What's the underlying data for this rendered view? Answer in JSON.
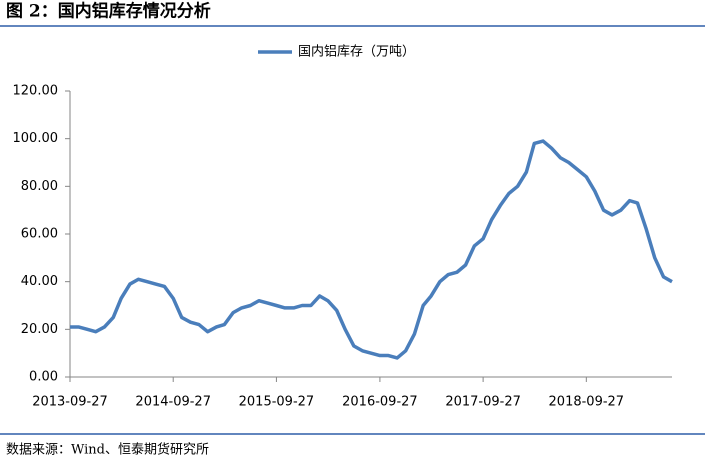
{
  "caption": "图 2：国内铝库存情况分析",
  "source": "数据来源：Wind、恒泰期货研究所",
  "chart_data": {
    "type": "line",
    "x": [
      "2013-09-27",
      "2013-10-27",
      "2013-11-27",
      "2013-12-27",
      "2014-01-27",
      "2014-02-27",
      "2014-03-27",
      "2014-04-27",
      "2014-05-27",
      "2014-06-27",
      "2014-07-27",
      "2014-08-27",
      "2014-09-27",
      "2014-10-27",
      "2014-11-27",
      "2014-12-27",
      "2015-01-27",
      "2015-02-27",
      "2015-03-27",
      "2015-04-27",
      "2015-05-27",
      "2015-06-27",
      "2015-07-27",
      "2015-08-27",
      "2015-09-27",
      "2015-10-27",
      "2015-11-27",
      "2015-12-27",
      "2016-01-27",
      "2016-02-27",
      "2016-03-27",
      "2016-04-27",
      "2016-05-27",
      "2016-06-27",
      "2016-07-27",
      "2016-08-27",
      "2016-09-27",
      "2016-10-27",
      "2016-11-27",
      "2016-12-27",
      "2017-01-27",
      "2017-02-27",
      "2017-03-27",
      "2017-04-27",
      "2017-05-27",
      "2017-06-27",
      "2017-07-27",
      "2017-08-27",
      "2017-09-27",
      "2017-10-27",
      "2017-11-27",
      "2017-12-27",
      "2018-01-27",
      "2018-02-27",
      "2018-03-27",
      "2018-04-27",
      "2018-05-27",
      "2018-06-27",
      "2018-07-27",
      "2018-08-27",
      "2018-09-27",
      "2018-10-27",
      "2018-11-27",
      "2018-12-27",
      "2019-01-27",
      "2019-02-27",
      "2019-03-27",
      "2019-04-27",
      "2019-05-27",
      "2019-06-27",
      "2019-07-27"
    ],
    "series": [
      {
        "name": "国内铝库存（万吨）",
        "color": "#4a7ebb",
        "values": [
          21,
          21,
          20,
          19,
          21,
          25,
          33,
          39,
          41,
          40,
          39,
          38,
          33,
          25,
          23,
          22,
          19,
          21,
          22,
          27,
          29,
          30,
          32,
          31,
          30,
          29,
          29,
          30,
          30,
          34,
          32,
          28,
          20,
          13,
          11,
          10,
          9,
          9,
          8,
          11,
          18,
          30,
          34,
          40,
          43,
          44,
          47,
          55,
          58,
          66,
          72,
          77,
          80,
          86,
          98,
          99,
          96,
          92,
          90,
          87,
          84,
          78,
          70,
          68,
          70,
          74,
          73,
          62,
          50,
          42,
          40
        ]
      }
    ],
    "xlim": [
      "2013-09-27",
      "2019-07-27"
    ],
    "xticks": [
      "2013-09-27",
      "2014-09-27",
      "2015-09-27",
      "2016-09-27",
      "2017-09-27",
      "2018-09-27"
    ],
    "ylim": [
      0,
      120
    ],
    "yticks": [
      {
        "value": 0,
        "label": "0.00"
      },
      {
        "value": 20,
        "label": "20.00"
      },
      {
        "value": 40,
        "label": "40.00"
      },
      {
        "value": 60,
        "label": "60.00"
      },
      {
        "value": 80,
        "label": "80.00"
      },
      {
        "value": 100,
        "label": "100.00"
      },
      {
        "value": 120,
        "label": "120.00"
      }
    ],
    "grid": false,
    "legend": "top"
  }
}
